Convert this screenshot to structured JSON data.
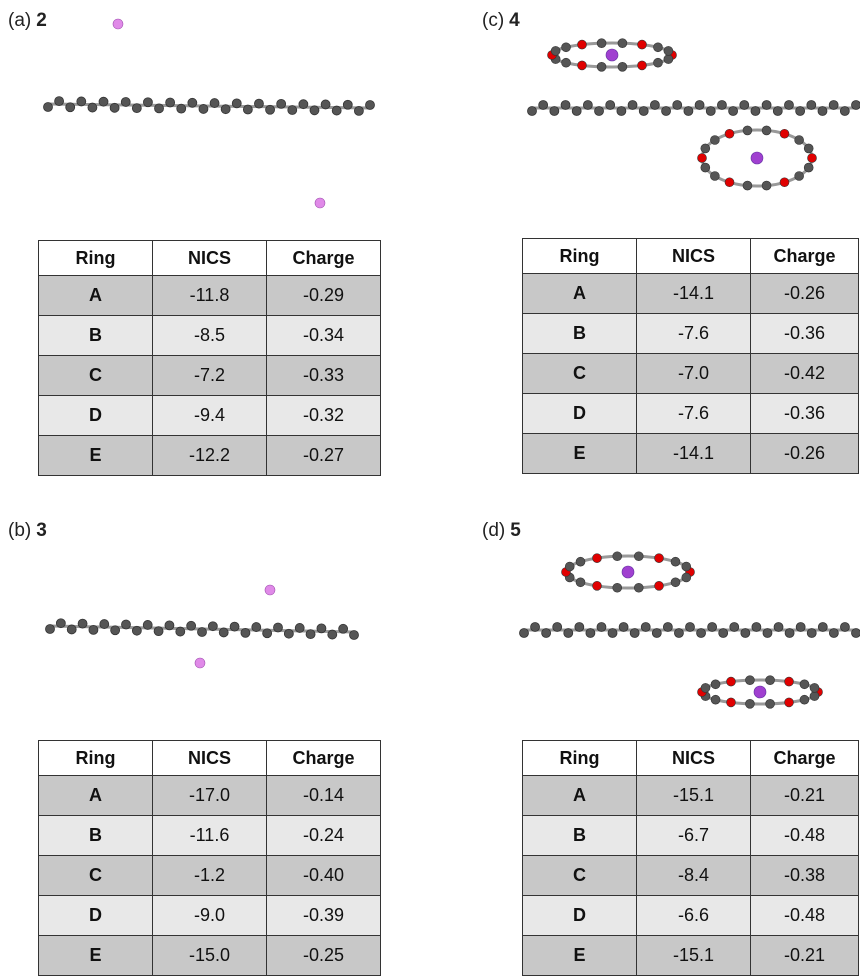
{
  "panels": [
    {
      "label": "(a)",
      "compound": "2",
      "table": {
        "header": [
          "Ring",
          "NICS",
          "Charge"
        ],
        "rows": [
          [
            "A",
            "-11.8",
            "-0.29"
          ],
          [
            "B",
            "-8.5",
            "-0.34"
          ],
          [
            "C",
            "-7.2",
            "-0.33"
          ],
          [
            "D",
            "-9.4",
            "-0.32"
          ],
          [
            "E",
            "-12.2",
            "-0.27"
          ]
        ]
      }
    },
    {
      "label": "(b)",
      "compound": "3",
      "table": {
        "header": [
          "Ring",
          "NICS",
          "Charge"
        ],
        "rows": [
          [
            "A",
            "-17.0",
            "-0.14"
          ],
          [
            "B",
            "-11.6",
            "-0.24"
          ],
          [
            "C",
            "-1.2",
            "-0.40"
          ],
          [
            "D",
            "-9.0",
            "-0.39"
          ],
          [
            "E",
            "-15.0",
            "-0.25"
          ]
        ]
      }
    },
    {
      "label": "(c)",
      "compound": "4",
      "table": {
        "header": [
          "Ring",
          "NICS",
          "Charge"
        ],
        "rows": [
          [
            "A",
            "-14.1",
            "-0.26"
          ],
          [
            "B",
            "-7.6",
            "-0.36"
          ],
          [
            "C",
            "-7.0",
            "-0.42"
          ],
          [
            "D",
            "-7.6",
            "-0.36"
          ],
          [
            "E",
            "-14.1",
            "-0.26"
          ]
        ]
      }
    },
    {
      "label": "(d)",
      "compound": "5",
      "table": {
        "header": [
          "Ring",
          "NICS",
          "Charge"
        ],
        "rows": [
          [
            "A",
            "-15.1",
            "-0.21"
          ],
          [
            "B",
            "-6.7",
            "-0.48"
          ],
          [
            "C",
            "-8.4",
            "-0.38"
          ],
          [
            "D",
            "-6.6",
            "-0.48"
          ],
          [
            "E",
            "-15.1",
            "-0.21"
          ]
        ]
      }
    }
  ]
}
